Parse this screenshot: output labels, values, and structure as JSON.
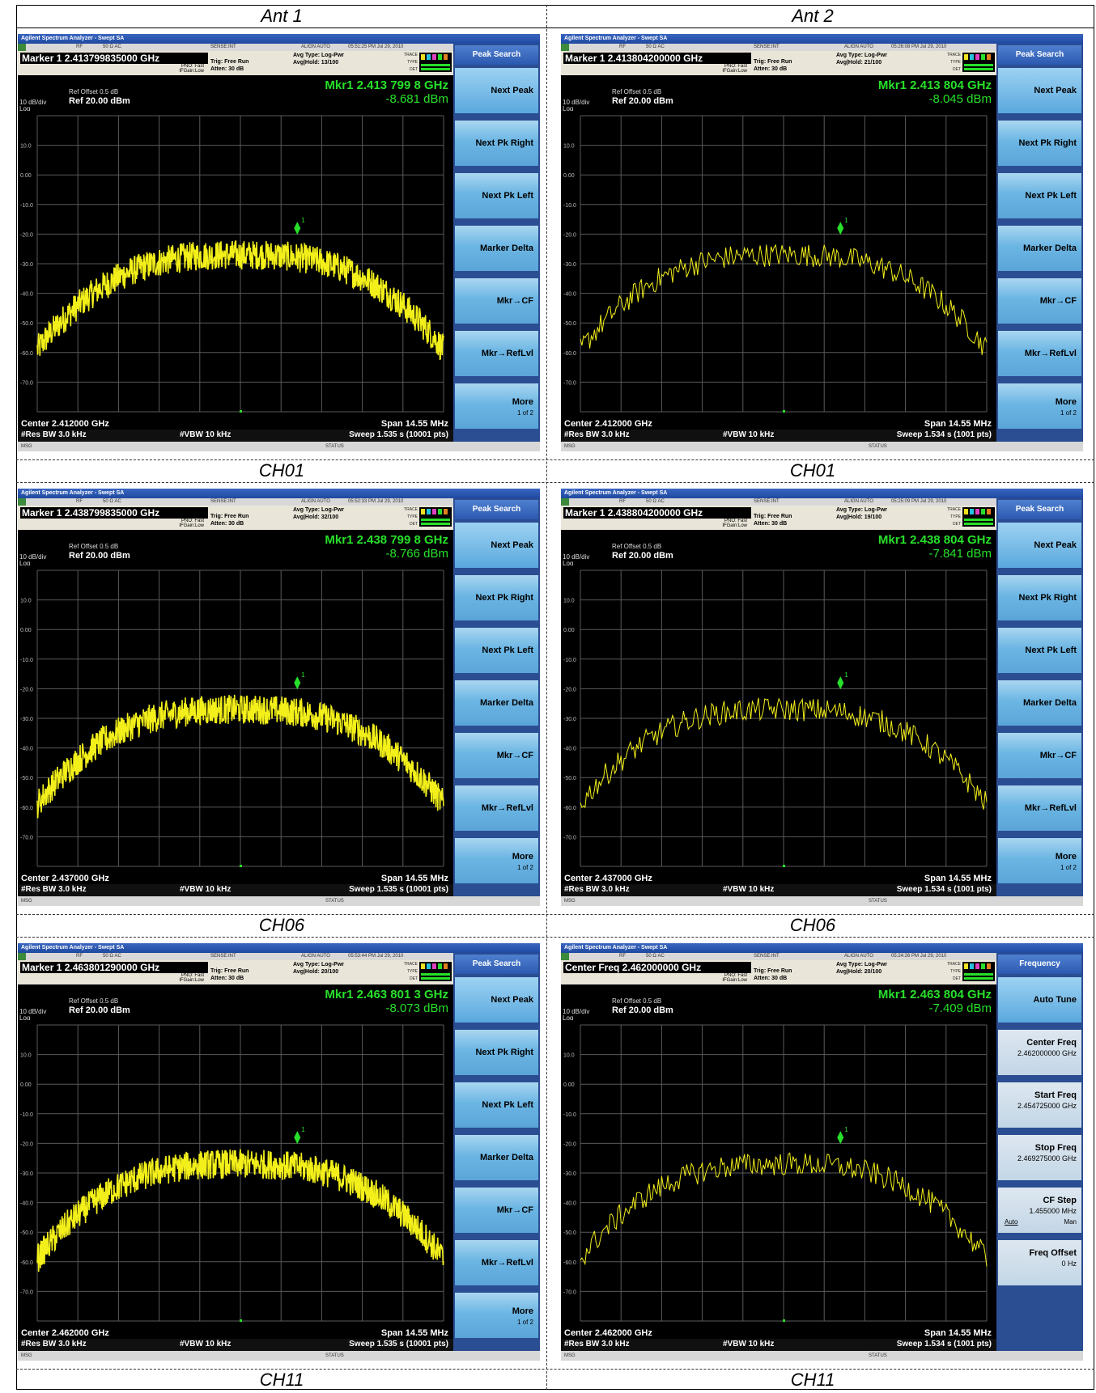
{
  "columns": [
    "Ant 1",
    "Ant 2"
  ],
  "row_labels": [
    "CH01",
    "CH01",
    "CH06",
    "CH06",
    "CH11",
    "CH11"
  ],
  "common": {
    "app_title": "Agilent Spectrum Analyzer - Swept SA",
    "status_rf": "RF",
    "status_ohm": "50 Ω  AC",
    "status_sense": "SENSE:INT",
    "status_align": "ALIGN AUTO",
    "pno": "PNO: Fast",
    "ifgain": "IFGain:Low",
    "trig": "Trig: Free Run",
    "atten": "Atten: 30 dB",
    "avg_type": "Avg Type: Log-Pwr",
    "ref_offset": "Ref Offset 0.5 dB",
    "ref_level": "Ref 20.00 dBm",
    "div": "10 dB/div",
    "log": "Log",
    "res_bw": "#Res BW 3.0 kHz",
    "vbw": "#VBW 10 kHz",
    "span": "Span 14.55 MHz",
    "footer_msg": "MSG",
    "footer_status": "STATUS",
    "trace_label": "TRACE TYPE DET",
    "y_ticks": [
      "10.0",
      "0.00",
      "-10.0",
      "-20.0",
      "-30.0",
      "-40.0",
      "-50.0",
      "-60.0",
      "-70.0"
    ],
    "peak_search_keys": {
      "head": "Peak Search",
      "keys": [
        "Next Peak",
        "Next Pk Right",
        "Next Pk Left",
        "Marker Delta",
        "Mkr→CF",
        "Mkr→RefLvl"
      ],
      "more": "More",
      "more_sub": "1 of 2"
    }
  },
  "screens": [
    {
      "time": "05:51:25 PM Jul 29, 2010",
      "header": "Marker 1  2.413799835000 GHz",
      "avg_hold": "Avg|Hold: 13/100",
      "mkr": "Mkr1 2.413 799 8 GHz",
      "mkr_val": "-8.681 dBm",
      "center": "Center 2.412000 GHz",
      "sweep": "Sweep  1.535 s (10001 pts)",
      "density": "dense",
      "softkey_mode": "peak"
    },
    {
      "time": "05:26:08 PM Jul 29, 2010",
      "header": "Marker 1  2.413804200000 GHz",
      "avg_hold": "Avg|Hold: 21/100",
      "mkr": "Mkr1 2.413 804 GHz",
      "mkr_val": "-8.045 dBm",
      "center": "Center 2.412000 GHz",
      "sweep": "Sweep  1.534 s (1001 pts)",
      "density": "sparse",
      "softkey_mode": "peak"
    },
    {
      "time": "05:52:33 PM Jul 29, 2010",
      "header": "Marker 1  2.438799835000 GHz",
      "avg_hold": "Avg|Hold: 32/100",
      "mkr": "Mkr1 2.438 799 8 GHz",
      "mkr_val": "-8.766 dBm",
      "center": "Center 2.437000 GHz",
      "sweep": "Sweep  1.535 s (10001 pts)",
      "density": "dense",
      "softkey_mode": "peak"
    },
    {
      "time": "05:25:09 PM Jul 29, 2010",
      "header": "Marker 1  2.438804200000 GHz",
      "avg_hold": "Avg|Hold: 19/100",
      "mkr": "Mkr1 2.438 804 GHz",
      "mkr_val": "-7.841 dBm",
      "center": "Center 2.437000 GHz",
      "sweep": "Sweep  1.534 s (1001 pts)",
      "density": "sparse",
      "softkey_mode": "peak"
    },
    {
      "time": "05:53:44 PM Jul 29, 2010",
      "header": "Marker 1  2.463801290000 GHz",
      "avg_hold": "Avg|Hold: 20/100",
      "mkr": "Mkr1 2.463 801 3 GHz",
      "mkr_val": "-8.073 dBm",
      "center": "Center 2.462000 GHz",
      "sweep": "Sweep  1.535 s (10001 pts)",
      "density": "dense",
      "softkey_mode": "peak"
    },
    {
      "time": "05:24:26 PM Jul 29, 2010",
      "header": "Center Freq  2.462000000 GHz",
      "avg_hold": "Avg|Hold: 20/100",
      "mkr": "Mkr1 2.463 804 GHz",
      "mkr_val": "-7.409 dBm",
      "center": "Center 2.462000 GHz",
      "sweep": "Sweep  1.534 s (1001 pts)",
      "density": "sparse",
      "softkey_mode": "freq",
      "freq_keys": {
        "head": "Frequency",
        "auto_tune": "Auto Tune",
        "center_freq": "Center Freq",
        "center_freq_val": "2.462000000 GHz",
        "start_freq": "Start Freq",
        "start_freq_val": "2.454725000 GHz",
        "stop_freq": "Stop Freq",
        "stop_freq_val": "2.469275000 GHz",
        "cf_step": "CF Step",
        "cf_step_val": "1.455000 MHz",
        "cf_auto": "Auto",
        "cf_man": "Man",
        "freq_offset": "Freq Offset",
        "freq_offset_val": "0 Hz"
      }
    }
  ]
}
